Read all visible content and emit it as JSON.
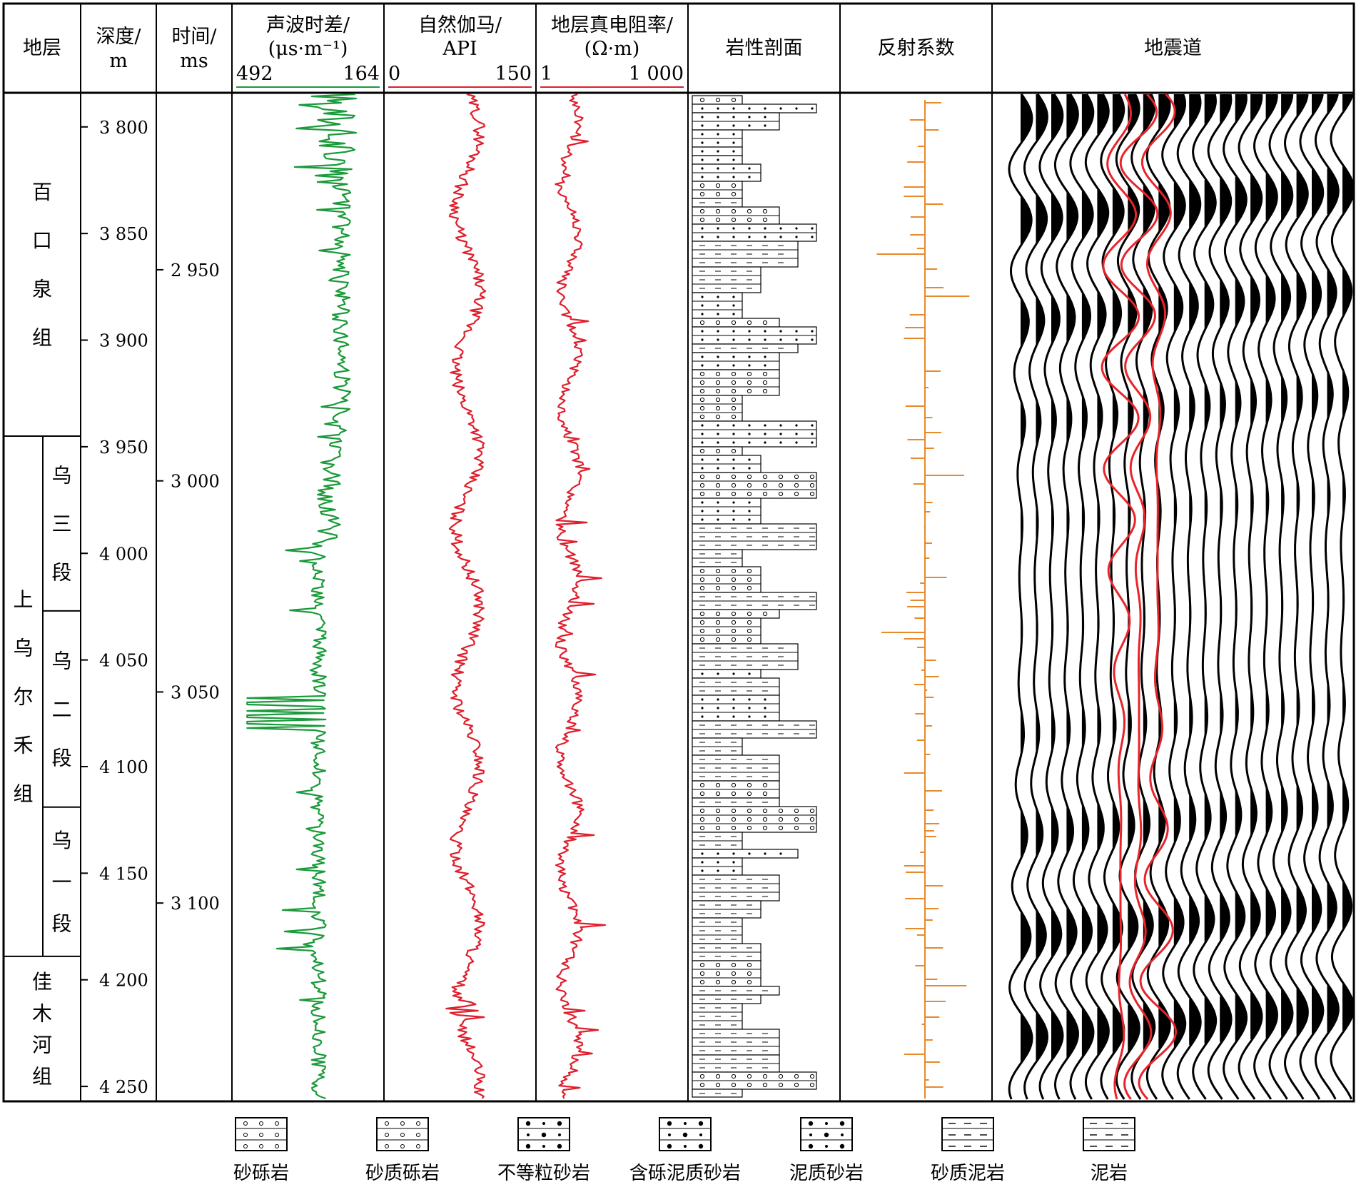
{
  "chart_data": {
    "type": "well_log_synthetic_seismogram",
    "columns": [
      {
        "key": "formation",
        "label": "地层"
      },
      {
        "key": "depth",
        "label": "深度/",
        "unit": "m"
      },
      {
        "key": "time",
        "label": "时间/",
        "unit": "ms"
      },
      {
        "key": "ac",
        "label": "声波时差/",
        "unit": "(μs·m⁻¹)",
        "scale": [
          "492",
          "164"
        ],
        "color": "#1a9a3a"
      },
      {
        "key": "gr",
        "label": "自然伽马/",
        "unit": "API",
        "scale": [
          "0",
          "150"
        ],
        "color": "#e01e2c"
      },
      {
        "key": "rt",
        "label": "地层真电阻率/",
        "unit": "(Ω·m)",
        "scale": [
          "1",
          "1 000"
        ],
        "color": "#e01e2c"
      },
      {
        "key": "lith",
        "label": "岩性剖面"
      },
      {
        "key": "refl",
        "label": "反射系数",
        "color": "#e8892a"
      },
      {
        "key": "seis",
        "label": "地震道",
        "color": "#000000",
        "synthetic_color": "#e8242a"
      }
    ],
    "depth_range": [
      3784,
      4257
    ],
    "depth_ticks": [
      {
        "value": 3800,
        "label": "3 800"
      },
      {
        "value": 3850,
        "label": "3 850"
      },
      {
        "value": 3900,
        "label": "3 900"
      },
      {
        "value": 3950,
        "label": "3 950"
      },
      {
        "value": 4000,
        "label": "4 000"
      },
      {
        "value": 4050,
        "label": "4 050"
      },
      {
        "value": 4100,
        "label": "4 100"
      },
      {
        "value": 4150,
        "label": "4 150"
      },
      {
        "value": 4200,
        "label": "4 200"
      },
      {
        "value": 4250,
        "label": "4 250"
      }
    ],
    "time_ticks": [
      {
        "value": 2950,
        "label": "2 950",
        "depth": 3867
      },
      {
        "value": 3000,
        "label": "3 000",
        "depth": 3966
      },
      {
        "value": 3050,
        "label": "3 050",
        "depth": 4065
      },
      {
        "value": 3100,
        "label": "3 100",
        "depth": 4164
      }
    ],
    "formations": [
      {
        "name": "百口泉组",
        "top": 3784,
        "bottom": 3945
      },
      {
        "name": "上乌尔禾组",
        "top": 3945,
        "bottom": 4189,
        "members": [
          {
            "name": "乌三段",
            "top": 3945,
            "bottom": 4027
          },
          {
            "name": "乌二段",
            "top": 4027,
            "bottom": 4119
          },
          {
            "name": "乌一段",
            "top": 4119,
            "bottom": 4189
          }
        ]
      },
      {
        "name": "佳木河组",
        "top": 4189,
        "bottom": 4257
      }
    ],
    "legend": [
      "砂砾岩",
      "砂质砾岩",
      "不等粒砂岩",
      "含砾泥质砂岩",
      "泥质砂岩",
      "砂质泥岩",
      "泥岩"
    ]
  }
}
